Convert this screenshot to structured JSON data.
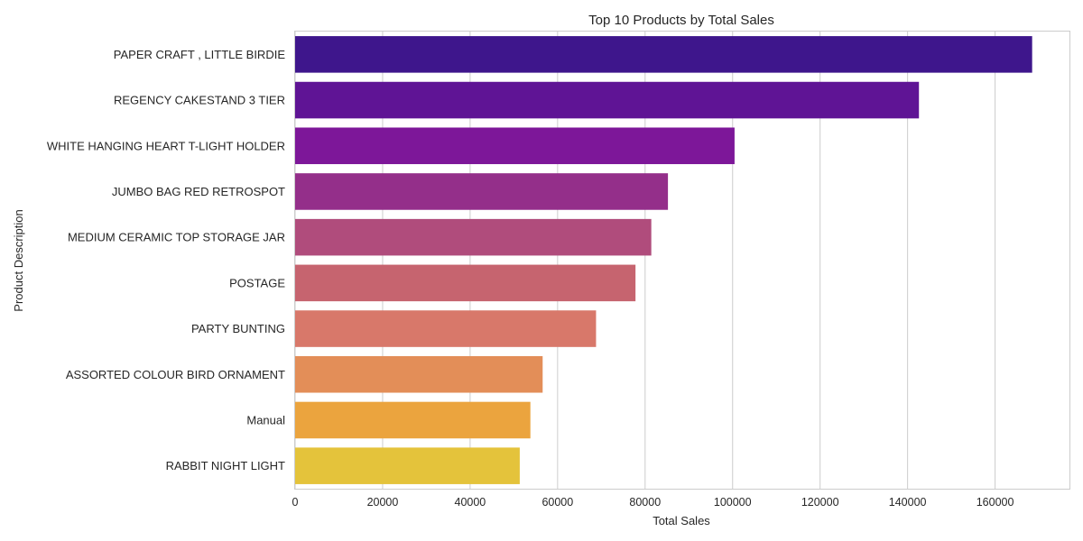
{
  "chart_data": {
    "type": "bar",
    "orientation": "horizontal",
    "title": "Top 10 Products by Total Sales",
    "xlabel": "Total Sales",
    "ylabel": "Product Description",
    "categories": [
      "PAPER CRAFT , LITTLE BIRDIE",
      "REGENCY CAKESTAND 3 TIER",
      "WHITE HANGING HEART T-LIGHT HOLDER",
      "JUMBO BAG RED RETROSPOT",
      "MEDIUM CERAMIC TOP STORAGE JAR",
      "POSTAGE",
      "PARTY BUNTING",
      "ASSORTED COLOUR BIRD ORNAMENT",
      "Manual",
      "RABBIT NIGHT LIGHT"
    ],
    "values": [
      168470,
      142593,
      100448,
      85221,
      81417,
      77804,
      68786,
      56580,
      53780,
      51346
    ],
    "colors": [
      "#3e168c",
      "#5f1495",
      "#7d1799",
      "#942f8a",
      "#b04c7c",
      "#c6646f",
      "#d8786a",
      "#e38e58",
      "#eba43e",
      "#e4c33b"
    ],
    "xlim": [
      0,
      177000
    ],
    "xticks": [
      0,
      20000,
      40000,
      60000,
      80000,
      100000,
      120000,
      140000,
      160000
    ],
    "xtick_labels": [
      "0",
      "20000",
      "40000",
      "60000",
      "80000",
      "100000",
      "120000",
      "140000",
      "160000"
    ],
    "grid": true
  }
}
